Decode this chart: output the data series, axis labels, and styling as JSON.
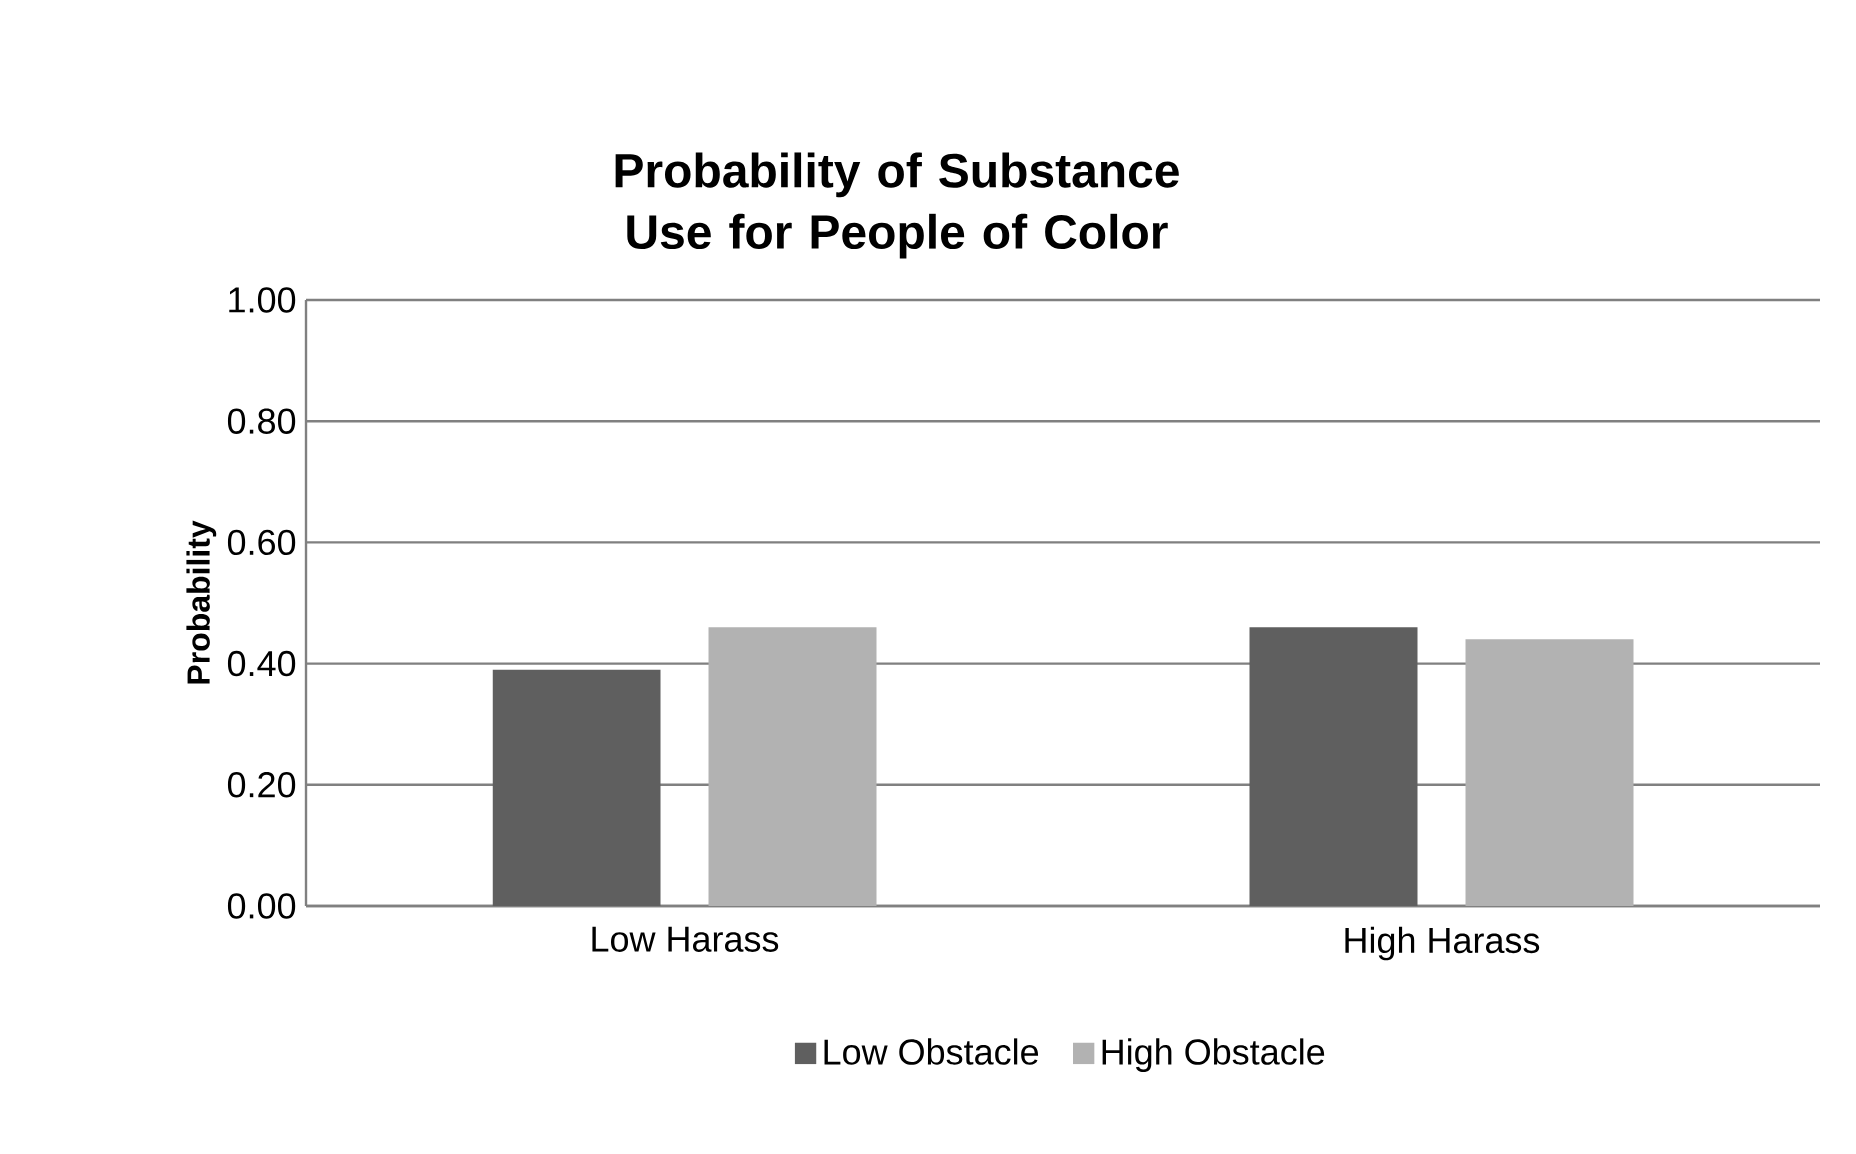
{
  "chart_data": {
    "type": "bar",
    "title": "Probability of Substance Use for People of Color",
    "ylabel": "Probability",
    "categories": [
      "Low Harass",
      "High Harass"
    ],
    "series": [
      {
        "name": "Low Obstacle",
        "color": "#5f5f5f",
        "values": [
          0.39,
          0.46
        ]
      },
      {
        "name": "High Obstacle",
        "color": "#b2b2b2",
        "values": [
          0.46,
          0.44
        ]
      }
    ],
    "ylim": [
      0,
      1
    ],
    "yticks": [
      {
        "value": 0,
        "label": "0.00"
      },
      {
        "value": 0.2,
        "label": "0.20"
      },
      {
        "value": 0.4,
        "label": "0.40"
      },
      {
        "value": 0.6,
        "label": "0.60"
      },
      {
        "value": 0.8,
        "label": "0.80"
      },
      {
        "value": 1,
        "label": "1.00"
      }
    ],
    "grid": "y",
    "legend": "bottom"
  }
}
